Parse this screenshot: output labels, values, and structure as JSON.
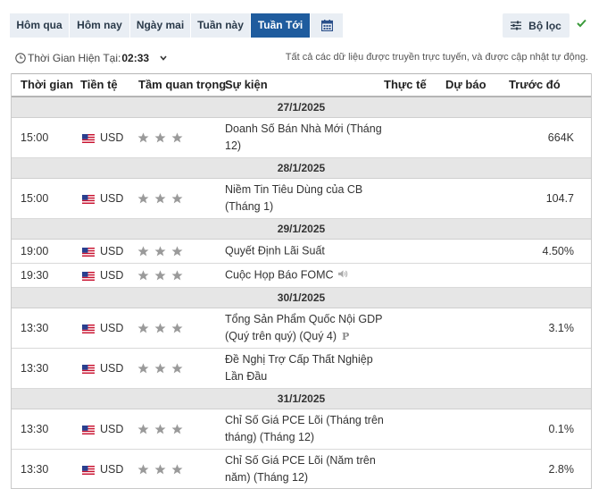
{
  "tabs": [
    {
      "label": "Hôm qua",
      "active": false
    },
    {
      "label": "Hôm nay",
      "active": false
    },
    {
      "label": "Ngày mai",
      "active": false
    },
    {
      "label": "Tuần này",
      "active": false
    },
    {
      "label": "Tuần Tới",
      "active": true
    }
  ],
  "filter": {
    "label": "Bộ lọc"
  },
  "clock": {
    "label": "Thời Gian Hiện Tại:",
    "time": "02:33"
  },
  "notice": "Tất cả các dữ liệu được truyền trực tuyến, và được cập nhật tự động.",
  "columns": {
    "time": "Thời gian",
    "currency": "Tiền tệ",
    "importance": "Tầm quan trọng",
    "event": "Sự kiện",
    "actual": "Thực tế",
    "forecast": "Dự báo",
    "previous": "Trước đó"
  },
  "colors": {
    "accent": "#1f5c9e",
    "check": "#3a9a3a",
    "star": "#9a9a9a"
  },
  "days": [
    {
      "date": "27/1/2025",
      "events": [
        {
          "time": "15:00",
          "currency": "USD",
          "stars": 3,
          "event": "Doanh Số Bán Nhà Mới (Tháng 12)",
          "actual": "",
          "forecast": "",
          "previous": "664K"
        }
      ]
    },
    {
      "date": "28/1/2025",
      "events": [
        {
          "time": "15:00",
          "currency": "USD",
          "stars": 3,
          "event": "Niềm Tin Tiêu Dùng của CB (Tháng 1)",
          "actual": "",
          "forecast": "",
          "previous": "104.7"
        }
      ]
    },
    {
      "date": "29/1/2025",
      "events": [
        {
          "time": "19:00",
          "currency": "USD",
          "stars": 3,
          "event": "Quyết Định Lãi Suất",
          "actual": "",
          "forecast": "",
          "previous": "4.50%"
        },
        {
          "time": "19:30",
          "currency": "USD",
          "stars": 3,
          "event": "Cuộc Họp Báo FOMC",
          "icon": "speaker-icon",
          "actual": "",
          "forecast": "",
          "previous": ""
        }
      ]
    },
    {
      "date": "30/1/2025",
      "events": [
        {
          "time": "13:30",
          "currency": "USD",
          "stars": 3,
          "event": "Tổng Sản Phẩm Quốc Nội GDP (Quý trên quý) (Quý 4)",
          "icon": "preliminary-icon",
          "icon_text": "P",
          "actual": "",
          "forecast": "",
          "previous": "3.1%"
        },
        {
          "time": "13:30",
          "currency": "USD",
          "stars": 3,
          "event": "Đề Nghị Trợ Cấp Thất Nghiệp Lần Đầu",
          "actual": "",
          "forecast": "",
          "previous": ""
        }
      ]
    },
    {
      "date": "31/1/2025",
      "events": [
        {
          "time": "13:30",
          "currency": "USD",
          "stars": 3,
          "event": "Chỉ Số Giá PCE Lõi (Tháng trên tháng) (Tháng 12)",
          "actual": "",
          "forecast": "",
          "previous": "0.1%"
        },
        {
          "time": "13:30",
          "currency": "USD",
          "stars": 3,
          "event": "Chỉ Số Giá PCE Lõi (Năm trên năm) (Tháng 12)",
          "actual": "",
          "forecast": "",
          "previous": "2.8%"
        }
      ]
    }
  ]
}
